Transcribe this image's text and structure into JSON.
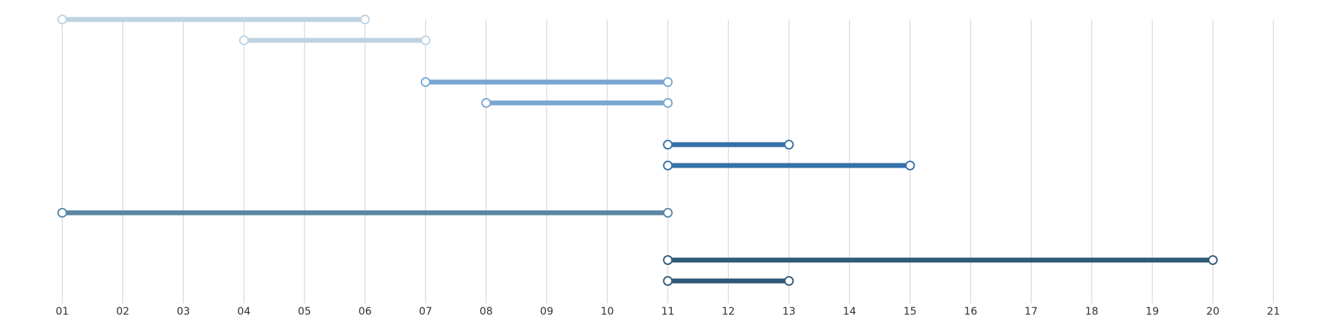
{
  "chart_data": {
    "type": "range",
    "xlim": [
      1,
      21
    ],
    "xticks": [
      {
        "value": 1,
        "label": "01"
      },
      {
        "value": 2,
        "label": "02"
      },
      {
        "value": 3,
        "label": "03"
      },
      {
        "value": 4,
        "label": "04"
      },
      {
        "value": 5,
        "label": "05"
      },
      {
        "value": 6,
        "label": "06"
      },
      {
        "value": 7,
        "label": "07"
      },
      {
        "value": 8,
        "label": "08"
      },
      {
        "value": 9,
        "label": "09"
      },
      {
        "value": 10,
        "label": "10"
      },
      {
        "value": 11,
        "label": "11"
      },
      {
        "value": 12,
        "label": "12"
      },
      {
        "value": 13,
        "label": "13"
      },
      {
        "value": 14,
        "label": "14"
      },
      {
        "value": 15,
        "label": "15"
      },
      {
        "value": 16,
        "label": "16"
      },
      {
        "value": 17,
        "label": "17"
      },
      {
        "value": 18,
        "label": "18"
      },
      {
        "value": 19,
        "label": "19"
      },
      {
        "value": 20,
        "label": "20"
      },
      {
        "value": 21,
        "label": "21"
      }
    ],
    "grid": true,
    "series": [
      {
        "color": "#bed3e1",
        "start": [
          1,
          4
        ],
        "end": [
          6,
          7
        ]
      },
      {
        "color": "#7aa6d0",
        "start": [
          7,
          8
        ],
        "end": [
          11,
          11
        ]
      },
      {
        "color": "#3571a8",
        "start": [
          11,
          11
        ],
        "end": [
          13,
          15
        ]
      },
      {
        "color": "#5b86a4",
        "start": [
          1
        ],
        "end": [
          11
        ]
      },
      {
        "color": "#2f5a78",
        "start": [
          11,
          11
        ],
        "end": [
          20,
          13
        ]
      }
    ]
  }
}
